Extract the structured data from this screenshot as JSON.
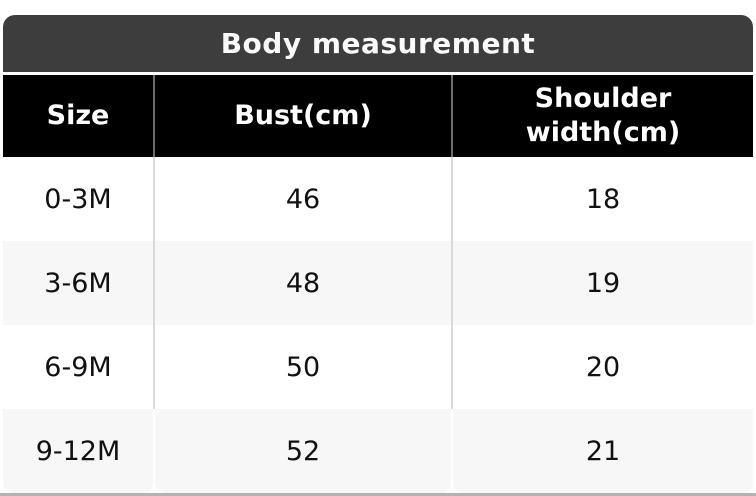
{
  "measurement_table": {
    "title": "Body measurement",
    "columns": [
      "Size",
      "Bust(cm)",
      "Shoulder width(cm)"
    ],
    "rows": [
      [
        "0-3M",
        "46",
        "18"
      ],
      [
        "3-6M",
        "48",
        "19"
      ],
      [
        "6-9M",
        "50",
        "20"
      ],
      [
        "9-12M",
        "52",
        "21"
      ]
    ],
    "colors": {
      "title_bar_bg": "#3d3d3d",
      "header_bg": "#000000",
      "header_text": "#ffffff",
      "row_bg": "#ffffff",
      "row_alt_bg": "#f7f7f7",
      "body_text": "#111111",
      "header_divider": "#6e6e6e",
      "body_divider": "#d9d9d9",
      "bottom_edge": "#b3b3b3"
    }
  }
}
